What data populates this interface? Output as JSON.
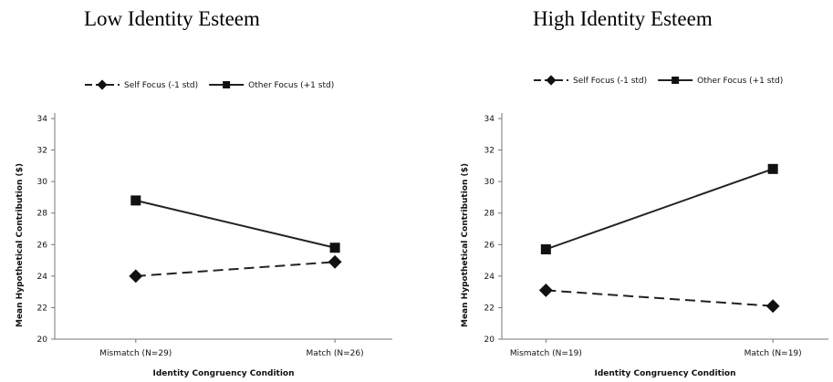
{
  "chart_data": [
    {
      "type": "line",
      "title": "Low Identity Esteem",
      "categories": [
        "Mismatch (N=29)",
        "Match (N=26)"
      ],
      "series": [
        {
          "name": "Self Focus (-1 std)",
          "values": [
            24.0,
            24.9
          ],
          "marker": "diamond",
          "line_style": "dashed",
          "color": "#222222"
        },
        {
          "name": "Other Focus (+1 std)",
          "values": [
            28.8,
            25.8
          ],
          "marker": "square",
          "line_style": "solid",
          "color": "#222222"
        }
      ],
      "xlabel": "Identity Congruency Condition",
      "ylabel": "Mean Hypothetical Contribution ($)",
      "ylim": [
        20,
        34
      ],
      "yticks": [
        "20",
        "22",
        "24",
        "26",
        "28",
        "30",
        "32",
        "34"
      ],
      "legend": "top",
      "grid": false
    },
    {
      "type": "line",
      "title": "High Identity Esteem",
      "categories": [
        "Mismatch (N=19)",
        "Match (N=19)"
      ],
      "series": [
        {
          "name": "Self Focus (-1 std)",
          "values": [
            23.1,
            22.1
          ],
          "marker": "diamond",
          "line_style": "dashed",
          "color": "#222222"
        },
        {
          "name": "Other Focus (+1 std)",
          "values": [
            25.7,
            30.8
          ],
          "marker": "square",
          "line_style": "solid",
          "color": "#222222"
        }
      ],
      "xlabel": "Identity Congruency Condition",
      "ylabel": "Mean Hypothetical Contribution ($)",
      "ylim": [
        20,
        34
      ],
      "yticks": [
        "20",
        "22",
        "24",
        "26",
        "28",
        "30",
        "32",
        "34"
      ],
      "legend": "top",
      "grid": false
    }
  ]
}
